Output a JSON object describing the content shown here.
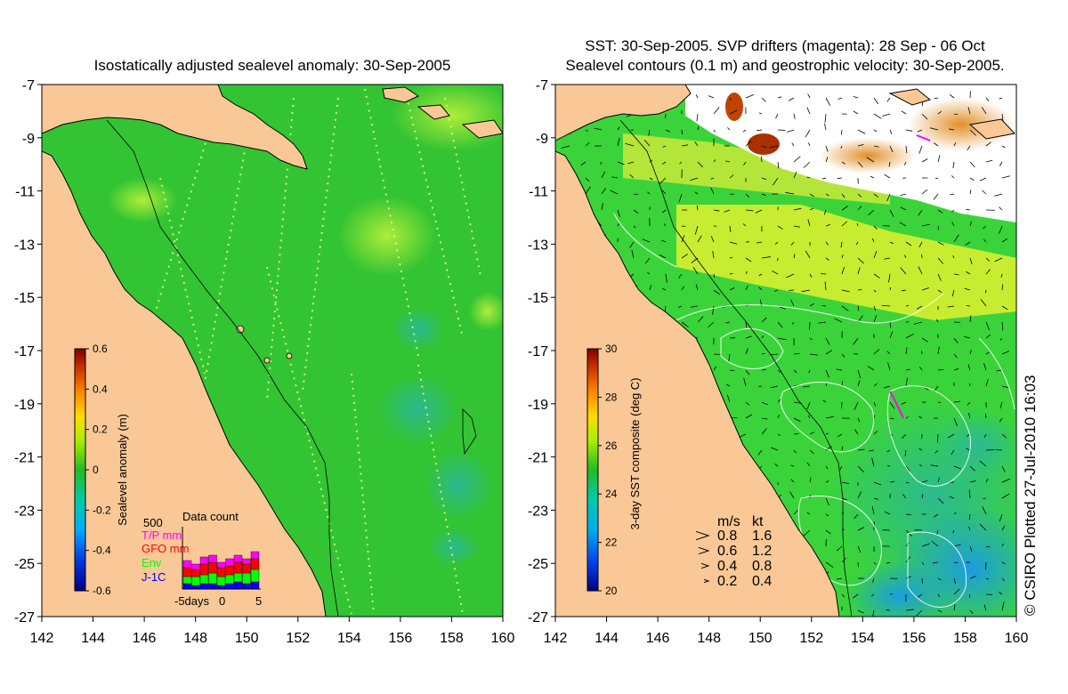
{
  "left_panel": {
    "title": "Isostatically adjusted sealevel anomaly: 30-Sep-2005",
    "colorbar": {
      "label": "Sealevel anomaly (m)",
      "ticks": [
        "0.6",
        "0.4",
        "0.2",
        "0",
        "-0.2",
        "-0.4",
        "-0.6"
      ]
    },
    "data_count": {
      "title": "Data count",
      "max_label": "500",
      "legend": [
        {
          "label": "T/P mm",
          "color": "#ff00ff"
        },
        {
          "label": "GFO mm",
          "color": "#ff0000"
        },
        {
          "label": "Env",
          "color": "#00ff00"
        },
        {
          "label": "J-1C",
          "color": "#0000ff"
        }
      ],
      "x_left": "-5days",
      "x_mid": "0",
      "x_right": "5"
    }
  },
  "right_panel": {
    "title_line1": "SST: 30-Sep-2005. SVP drifters (magenta): 28 Sep - 06 Oct",
    "title_line2": "Sealevel contours (0.1 m) and geostrophic velocity: 30-Sep-2005.",
    "colorbar": {
      "label": "3-day SST composite (deg C)",
      "ticks": [
        "30",
        "28",
        "26",
        "24",
        "22",
        "20"
      ]
    },
    "velocity_legend": {
      "header_ms": "m/s",
      "header_kt": "kt",
      "rows": [
        {
          "ms": "0.8",
          "kt": "1.6"
        },
        {
          "ms": "0.6",
          "kt": "1.2"
        },
        {
          "ms": "0.4",
          "kt": "0.8"
        },
        {
          "ms": "0.2",
          "kt": "0.4"
        }
      ]
    }
  },
  "axes": {
    "lon_ticks": [
      "142",
      "144",
      "146",
      "148",
      "150",
      "152",
      "154",
      "156",
      "158",
      "160"
    ],
    "lat_ticks": [
      "-7",
      "-9",
      "-11",
      "-13",
      "-15",
      "-17",
      "-19",
      "-21",
      "-23",
      "-25",
      "-27"
    ]
  },
  "copyright": "© CSIRO Plotted 27-Jul-2010 16:03",
  "colors": {
    "land": "#f9c896",
    "sea_anomaly": "#33c833",
    "sea_anomaly_light": "#66e030",
    "sea_anomaly_teal": "#30bb88",
    "sst_cloud": "#ffffff"
  }
}
